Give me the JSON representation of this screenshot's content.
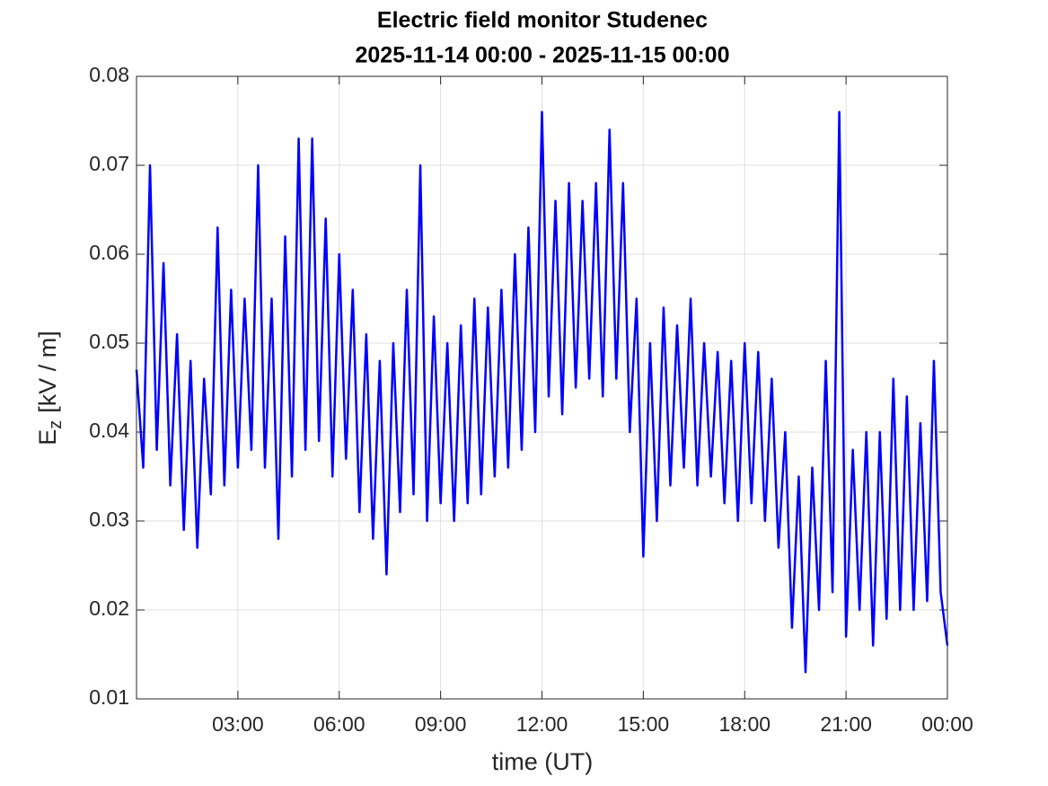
{
  "chart_data": {
    "type": "line",
    "title": [
      "Electric field monitor Studenec",
      "2025-11-14 00:00 - 2025-11-15 00:00"
    ],
    "xlabel": "time (UT)",
    "ylabel": {
      "symbol": "E",
      "subscript": "z",
      "unit": "[kV / m]"
    },
    "x": [
      0.0,
      0.2,
      0.4,
      0.6,
      0.8,
      1.0,
      1.2,
      1.4,
      1.6,
      1.8,
      2.0,
      2.2,
      2.4,
      2.6,
      2.8,
      3.0,
      3.2,
      3.4,
      3.6,
      3.8,
      4.0,
      4.2,
      4.4,
      4.6,
      4.8,
      5.0,
      5.2,
      5.4,
      5.6,
      5.8,
      6.0,
      6.2,
      6.4,
      6.6,
      6.8,
      7.0,
      7.2,
      7.4,
      7.6,
      7.8,
      8.0,
      8.2,
      8.4,
      8.6,
      8.8,
      9.0,
      9.2,
      9.4,
      9.6,
      9.8,
      10.0,
      10.2,
      10.4,
      10.6,
      10.8,
      11.0,
      11.2,
      11.4,
      11.6,
      11.8,
      12.0,
      12.2,
      12.4,
      12.6,
      12.8,
      13.0,
      13.2,
      13.4,
      13.6,
      13.8,
      14.0,
      14.2,
      14.4,
      14.6,
      14.8,
      15.0,
      15.2,
      15.4,
      15.6,
      15.8,
      16.0,
      16.2,
      16.4,
      16.6,
      16.8,
      17.0,
      17.2,
      17.4,
      17.6,
      17.8,
      18.0,
      18.2,
      18.4,
      18.6,
      18.8,
      19.0,
      19.2,
      19.4,
      19.6,
      19.8,
      20.0,
      20.2,
      20.4,
      20.6,
      20.8,
      21.0,
      21.2,
      21.4,
      21.6,
      21.8,
      22.0,
      22.2,
      22.4,
      22.6,
      22.8,
      23.0,
      23.2,
      23.4,
      23.6,
      23.8,
      24.0
    ],
    "series": [
      {
        "color": "#0000ff",
        "values": [
          0.047,
          0.036,
          0.07,
          0.038,
          0.059,
          0.034,
          0.051,
          0.029,
          0.048,
          0.027,
          0.046,
          0.033,
          0.063,
          0.034,
          0.056,
          0.036,
          0.055,
          0.038,
          0.07,
          0.036,
          0.055,
          0.028,
          0.062,
          0.035,
          0.073,
          0.038,
          0.073,
          0.039,
          0.064,
          0.035,
          0.06,
          0.037,
          0.056,
          0.031,
          0.051,
          0.028,
          0.048,
          0.024,
          0.05,
          0.031,
          0.056,
          0.033,
          0.07,
          0.03,
          0.053,
          0.032,
          0.05,
          0.03,
          0.052,
          0.032,
          0.055,
          0.033,
          0.054,
          0.035,
          0.056,
          0.036,
          0.06,
          0.038,
          0.063,
          0.04,
          0.076,
          0.044,
          0.066,
          0.042,
          0.068,
          0.045,
          0.066,
          0.046,
          0.068,
          0.044,
          0.074,
          0.046,
          0.068,
          0.04,
          0.055,
          0.026,
          0.05,
          0.03,
          0.054,
          0.034,
          0.052,
          0.036,
          0.055,
          0.034,
          0.05,
          0.035,
          0.049,
          0.032,
          0.048,
          0.03,
          0.05,
          0.032,
          0.049,
          0.03,
          0.046,
          0.027,
          0.04,
          0.018,
          0.035,
          0.013,
          0.036,
          0.02,
          0.048,
          0.022,
          0.076,
          0.017,
          0.038,
          0.02,
          0.04,
          0.016,
          0.04,
          0.019,
          0.046,
          0.02,
          0.044,
          0.02,
          0.041,
          0.021,
          0.048,
          0.022,
          0.016
        ]
      }
    ],
    "xlim": [
      0,
      24
    ],
    "xticks": [
      {
        "value": 3,
        "label": "03:00"
      },
      {
        "value": 6,
        "label": "06:00"
      },
      {
        "value": 9,
        "label": "09:00"
      },
      {
        "value": 12,
        "label": "12:00"
      },
      {
        "value": 15,
        "label": "15:00"
      },
      {
        "value": 18,
        "label": "18:00"
      },
      {
        "value": 21,
        "label": "21:00"
      },
      {
        "value": 24,
        "label": "00:00"
      }
    ],
    "ylim": [
      0.01,
      0.08
    ],
    "yticks": [
      0.01,
      0.02,
      0.03,
      0.04,
      0.05,
      0.06,
      0.07,
      0.08
    ],
    "grid": true
  }
}
